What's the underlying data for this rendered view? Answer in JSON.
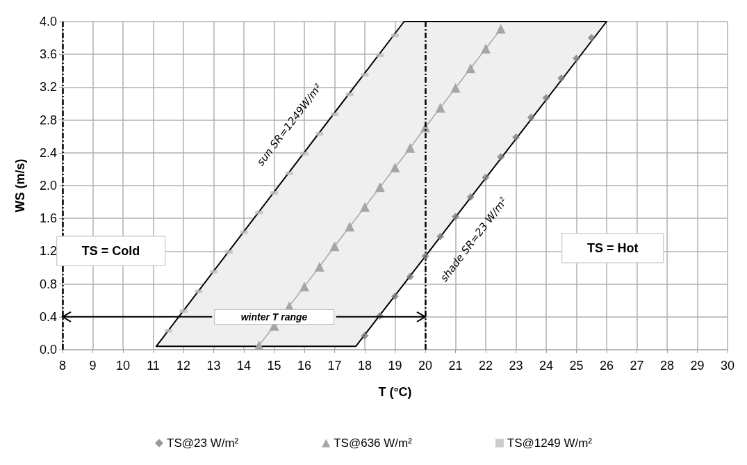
{
  "chart_data": {
    "type": "scatter",
    "xlabel": "T (°C)",
    "ylabel": "WS (m/s)",
    "xlim": [
      8,
      30
    ],
    "xticks": [
      8,
      9,
      10,
      11,
      12,
      13,
      14,
      15,
      16,
      17,
      18,
      19,
      20,
      21,
      22,
      23,
      24,
      25,
      26,
      27,
      28,
      29,
      30
    ],
    "ylim": [
      0,
      4.0
    ],
    "yticks": [
      {
        "value": 0,
        "label": "0.0"
      },
      {
        "value": 0.4,
        "label": "0.4"
      },
      {
        "value": 0.8,
        "label": "0.8"
      },
      {
        "value": 1.2,
        "label": "1.2"
      },
      {
        "value": 1.6,
        "label": "1.6"
      },
      {
        "value": 2.0,
        "label": "2.0"
      },
      {
        "value": 2.4,
        "label": "2.4"
      },
      {
        "value": 2.8,
        "label": "2.8"
      },
      {
        "value": 3.2,
        "label": "3.2"
      },
      {
        "value": 3.6,
        "label": "3.6"
      },
      {
        "value": 4.0,
        "label": "4.0"
      }
    ],
    "grid": true,
    "legend": "bottom",
    "series": [
      {
        "type": "area",
        "color": "#000000",
        "x": [
          11.1,
          17.7,
          26,
          19.3,
          11.1
        ],
        "values": [
          0.04,
          0.04,
          4.0,
          4.0,
          0.04
        ],
        "marker": "none"
      },
      {
        "name": "TS@23 W/m²",
        "color": "#7f7f7f",
        "marker": "diamond",
        "x": [
          18,
          18.5,
          19,
          19.5,
          20,
          20.5,
          21,
          21.5,
          22,
          22.5,
          23,
          23.5,
          24,
          24.5,
          25,
          25.5
        ],
        "values": [
          0.17,
          0.41,
          0.65,
          0.89,
          1.14,
          1.38,
          1.62,
          1.86,
          2.1,
          2.35,
          2.59,
          2.83,
          3.07,
          3.31,
          3.55,
          3.8
        ]
      },
      {
        "name": "TS@636 W/m²",
        "type": "line",
        "color": "#a6a6a6",
        "marker": "triangle",
        "x": [
          14.5,
          15,
          15.5,
          16,
          16.5,
          17,
          17.5,
          18,
          18.5,
          19,
          19.5,
          20,
          20.5,
          21,
          21.5,
          22,
          22.5
        ],
        "values": [
          0.05,
          0.29,
          0.53,
          0.77,
          1.01,
          1.26,
          1.5,
          1.74,
          1.98,
          2.22,
          2.46,
          2.71,
          2.95,
          3.19,
          3.43,
          3.67,
          3.91
        ]
      },
      {
        "name": "TS@1249 W/m²",
        "color": "#bfbfbf",
        "marker": "square",
        "x": [
          11.5,
          12,
          12.5,
          13,
          13.5,
          14,
          14.5,
          15,
          15.5,
          16,
          16.5,
          17,
          17.5,
          18,
          18.5,
          19
        ],
        "values": [
          0.23,
          0.47,
          0.71,
          0.95,
          1.19,
          1.43,
          1.67,
          1.91,
          2.15,
          2.39,
          2.63,
          2.87,
          3.11,
          3.35,
          3.59,
          3.83
        ]
      }
    ],
    "ref_lines": [
      {
        "axis": "x",
        "value": 8,
        "color": "#000000",
        "line_style": "dashed"
      },
      {
        "axis": "x",
        "value": 20,
        "color": "#000000",
        "line_style": "dashed"
      }
    ],
    "annotations": [
      "winter T range",
      "sun SR=1249W/m²",
      "shade SR=23 W/m²",
      "TS = Cold",
      "TS = Hot"
    ]
  }
}
